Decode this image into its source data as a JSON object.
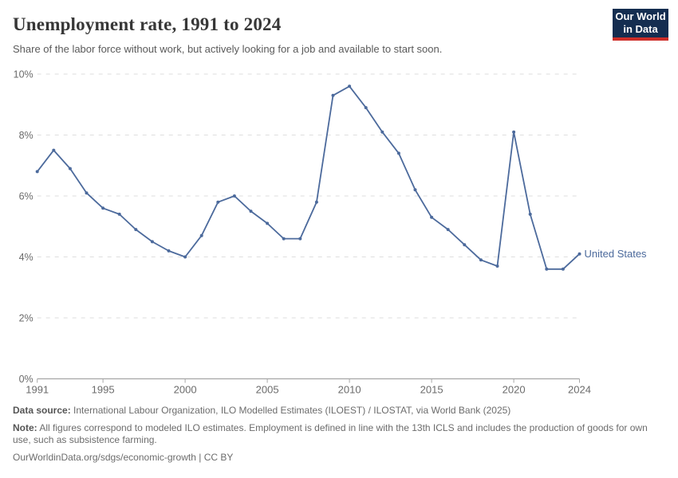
{
  "header": {
    "title": "Unemployment rate, 1991 to 2024",
    "subtitle": "Share of the labor force without work, but actively looking for a job and available to start soon."
  },
  "logo": {
    "line1": "Our World",
    "line2": "in Data"
  },
  "chart_data": {
    "type": "line",
    "title": "Unemployment rate, 1991 to 2024",
    "unit": "%",
    "xlim": [
      1991,
      2024
    ],
    "ylim": [
      0,
      10
    ],
    "x_ticks": [
      1991,
      1995,
      2000,
      2005,
      2010,
      2015,
      2020,
      2024
    ],
    "y_ticks": [
      0,
      2,
      4,
      6,
      8,
      10
    ],
    "y_tick_suffix": "%",
    "grid": "horizontal-dashed",
    "legend": "end-of-line-label",
    "x": [
      1991,
      1992,
      1993,
      1994,
      1995,
      1996,
      1997,
      1998,
      1999,
      2000,
      2001,
      2002,
      2003,
      2004,
      2005,
      2006,
      2007,
      2008,
      2009,
      2010,
      2011,
      2012,
      2013,
      2014,
      2015,
      2016,
      2017,
      2018,
      2019,
      2020,
      2021,
      2022,
      2023,
      2024
    ],
    "series": [
      {
        "name": "United States",
        "color": "#4C6A9C",
        "values": [
          6.8,
          7.5,
          6.9,
          6.1,
          5.6,
          5.4,
          4.9,
          4.5,
          4.2,
          4.0,
          4.7,
          5.8,
          6.0,
          5.5,
          5.1,
          4.6,
          4.6,
          5.8,
          9.3,
          9.6,
          8.9,
          8.1,
          7.4,
          6.2,
          5.3,
          4.9,
          4.4,
          3.9,
          3.7,
          8.1,
          5.4,
          3.6,
          3.6,
          4.1
        ]
      }
    ],
    "colors": {
      "gridline": "#dedede",
      "axis": "#a6a6a6",
      "tick_label": "#6b6b6b"
    }
  },
  "footer": {
    "data_source_label": "Data source:",
    "data_source": "International Labour Organization, ILO Modelled Estimates (ILOEST) / ILOSTAT, via World Bank (2025)",
    "note_label": "Note:",
    "note": "All figures correspond to modeled ILO estimates. Employment is defined in line with the 13th ICLS and includes the production of goods for own use, such as subsistence farming.",
    "url": "OurWorldinData.org/sdgs/economic-growth",
    "separator": "|",
    "license": "CC BY"
  }
}
